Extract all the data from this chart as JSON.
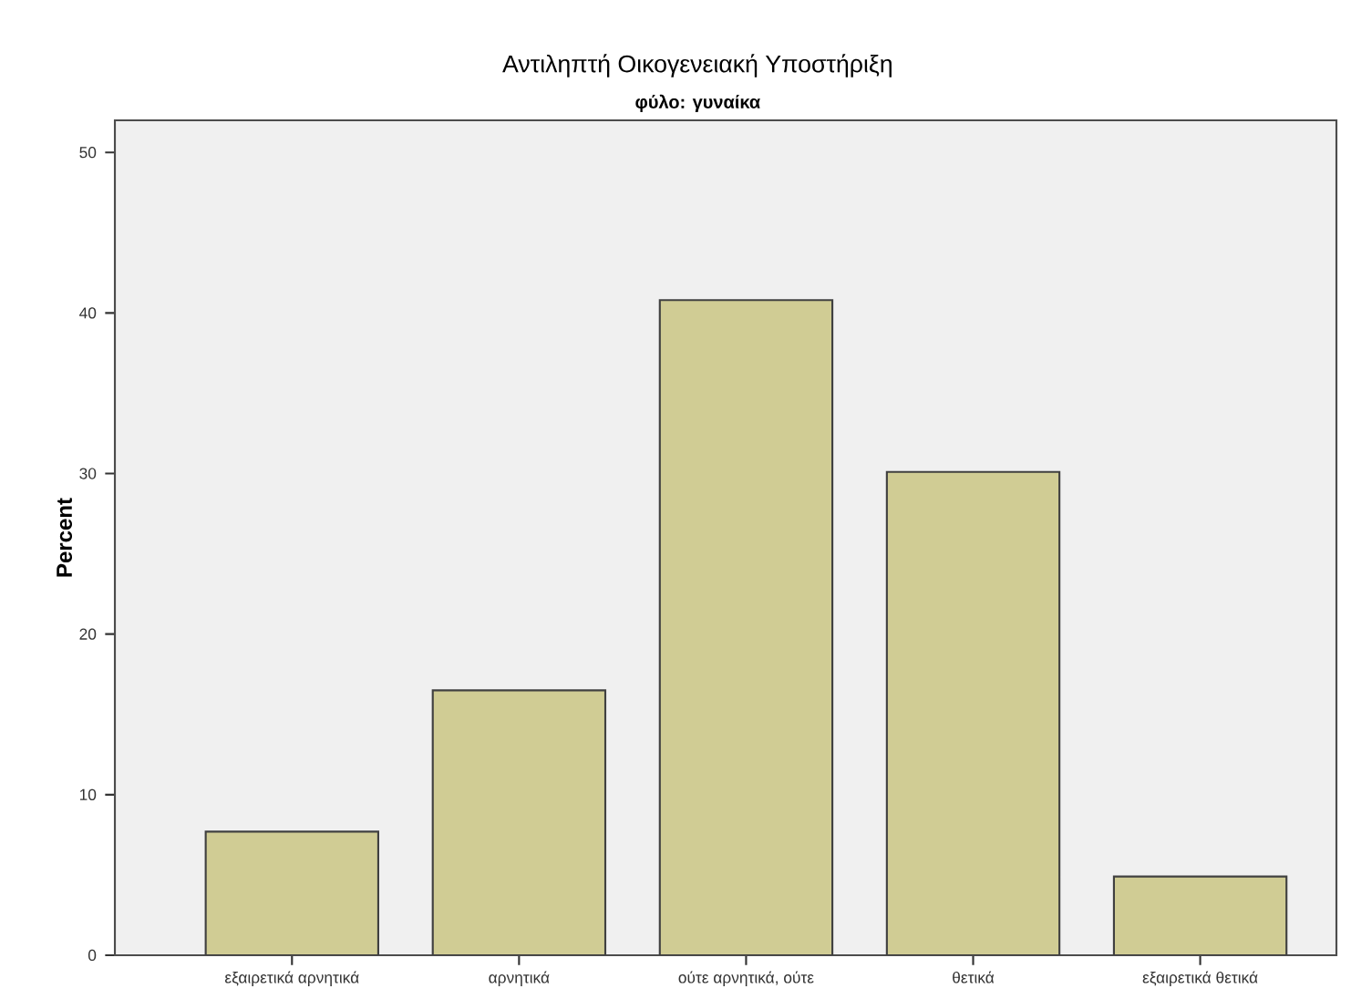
{
  "chart_data": {
    "type": "bar",
    "title": "Αντιληπτή Οικογενειακή Υποστήριξη",
    "subtitle": "φύλο: γυναίκα",
    "ylabel": "Percent",
    "categories": [
      "εξαιρετικά αρνητικά",
      "αρνητικά",
      "ούτε αρνητικά, ούτε",
      "θετικά",
      "εξαιρετικά θετικά"
    ],
    "values": [
      7.7,
      16.5,
      40.8,
      30.1,
      4.9
    ],
    "color": "#d0cc94",
    "ylim": [
      0,
      52
    ],
    "yticks": [
      0,
      10,
      20,
      30,
      40,
      50
    ]
  }
}
